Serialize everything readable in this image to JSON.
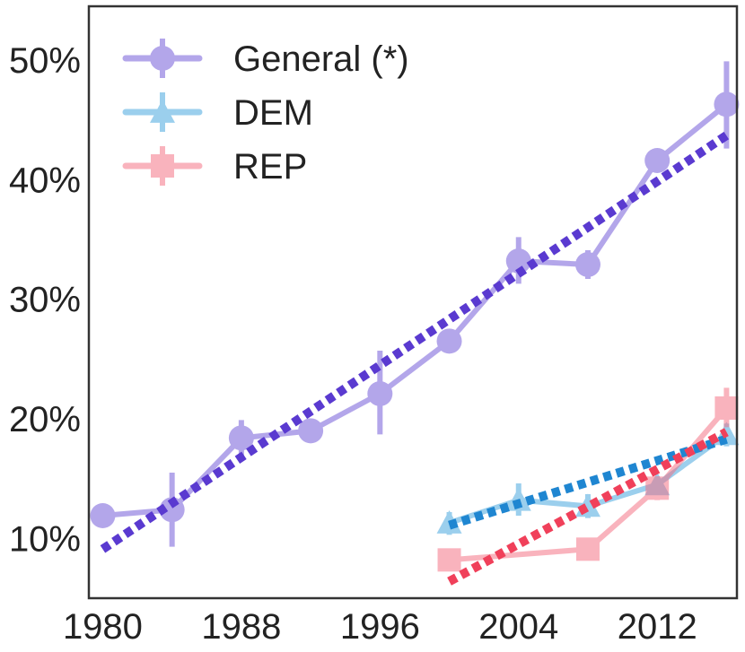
{
  "chart_data": {
    "type": "line",
    "x_ticks": [
      "1980",
      "1988",
      "1996",
      "2004",
      "2012"
    ],
    "x_tick_values": [
      1980,
      1988,
      1996,
      2004,
      2012
    ],
    "y_ticks": [
      "10%",
      "20%",
      "30%",
      "40%",
      "50%"
    ],
    "y_tick_values": [
      10,
      20,
      30,
      40,
      50
    ],
    "xlim": [
      1979.2,
      2016.6
    ],
    "ylim": [
      5,
      54.5
    ],
    "grid": false,
    "legend_position": "top-left",
    "series": [
      {
        "name": "General (*)",
        "marker": "circle",
        "color": "#6a4fd6",
        "points": [
          {
            "x": 1980,
            "y": 11.9
          },
          {
            "x": 1984,
            "y": 12.4,
            "err": [
              9.3,
              15.5
            ]
          },
          {
            "x": 1988,
            "y": 18.4,
            "err": [
              16.9,
              19.9
            ]
          },
          {
            "x": 1992,
            "y": 19.0
          },
          {
            "x": 1996,
            "y": 22.1,
            "err": [
              18.7,
              25.7
            ]
          },
          {
            "x": 2000,
            "y": 26.5
          },
          {
            "x": 2004,
            "y": 33.2,
            "err": [
              31.3,
              35.2
            ]
          },
          {
            "x": 2008,
            "y": 32.9,
            "err": [
              31.7,
              34.1
            ]
          },
          {
            "x": 2012,
            "y": 41.6
          },
          {
            "x": 2016,
            "y": 46.3,
            "err": [
              42.6,
              49.9
            ]
          }
        ]
      },
      {
        "name": "DEM",
        "marker": "triangle",
        "color": "#3aa0dc",
        "points": [
          {
            "x": 2000,
            "y": 11.3,
            "err": [
              10.3,
              12.2
            ]
          },
          {
            "x": 2004,
            "y": 13.2,
            "err": [
              11.9,
              14.6
            ]
          },
          {
            "x": 2008,
            "y": 12.7,
            "err": [
              11.7,
              13.7
            ]
          },
          {
            "x": 2012,
            "y": 14.5
          },
          {
            "x": 2016,
            "y": 18.7,
            "err": [
              17.7,
              19.6
            ]
          }
        ]
      },
      {
        "name": "REP",
        "marker": "square",
        "color": "#f56a7e",
        "points": [
          {
            "x": 2000,
            "y": 8.2
          },
          {
            "x": 2008,
            "y": 9.1
          },
          {
            "x": 2012,
            "y": 14.2,
            "err": [
              13.2,
              15.2
            ]
          },
          {
            "x": 2016,
            "y": 20.9,
            "err": [
              19.3,
              22.6
            ]
          }
        ]
      }
    ],
    "trend_lines": [
      {
        "series": "General (*)",
        "color": "#5a3ad0",
        "x": [
          1980,
          2016
        ],
        "y": [
          9.1,
          43.7
        ]
      },
      {
        "series": "DEM",
        "color": "#1f86d1",
        "x": [
          2000,
          2016
        ],
        "y": [
          11.1,
          18.3
        ]
      },
      {
        "series": "REP",
        "color": "#f0405a",
        "x": [
          2000,
          2016
        ],
        "y": [
          6.4,
          18.9
        ]
      }
    ]
  }
}
